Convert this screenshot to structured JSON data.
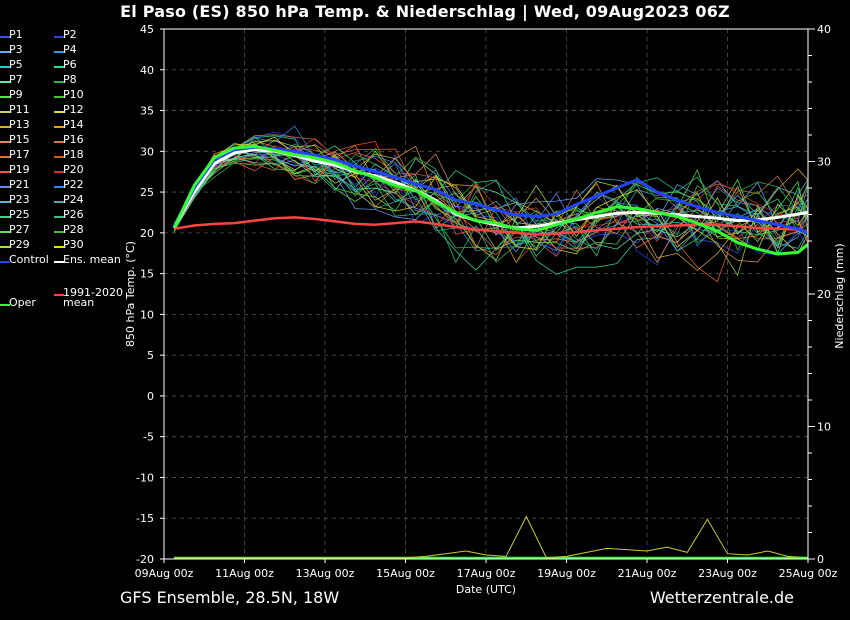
{
  "title": "El Paso  (ES)  850 hPa Temp. & Niederschlag | Wed, 09Aug2023 06Z",
  "footer": {
    "left": "GFS Ensemble, 28.5N, 18W",
    "right": "Wetterzentrale.de"
  },
  "legend": [
    {
      "label": "P1",
      "color": "#3355ff"
    },
    {
      "label": "P2",
      "color": "#2244ee"
    },
    {
      "label": "P3",
      "color": "#66aaff"
    },
    {
      "label": "P4",
      "color": "#3399dd"
    },
    {
      "label": "P5",
      "color": "#22cccc"
    },
    {
      "label": "P6",
      "color": "#33dd99"
    },
    {
      "label": "P7",
      "color": "#55eeaa"
    },
    {
      "label": "P8",
      "color": "#22bb55"
    },
    {
      "label": "P9",
      "color": "#44ee44"
    },
    {
      "label": "P10",
      "color": "#33cc33"
    },
    {
      "label": "P11",
      "color": "#cccc66"
    },
    {
      "label": "P12",
      "color": "#dddd55"
    },
    {
      "label": "P13",
      "color": "#ddaa33"
    },
    {
      "label": "P14",
      "color": "#ee9922"
    },
    {
      "label": "P15",
      "color": "#dd8866"
    },
    {
      "label": "P16",
      "color": "#cc7744"
    },
    {
      "label": "P17",
      "color": "#ee6633"
    },
    {
      "label": "P18",
      "color": "#dd5522"
    },
    {
      "label": "P19",
      "color": "#ee5555"
    },
    {
      "label": "P20",
      "color": "#cc3333"
    },
    {
      "label": "P21",
      "color": "#6688ff"
    },
    {
      "label": "P22",
      "color": "#3388ee"
    },
    {
      "label": "P23",
      "color": "#55bbcc"
    },
    {
      "label": "P24",
      "color": "#44aaaa"
    },
    {
      "label": "P25",
      "color": "#33dd88"
    },
    {
      "label": "P26",
      "color": "#22cc88"
    },
    {
      "label": "P27",
      "color": "#66dd55"
    },
    {
      "label": "P28",
      "color": "#44bb33"
    },
    {
      "label": "P29",
      "color": "#aadd44"
    },
    {
      "label": "P30",
      "color": "#dddd22"
    },
    {
      "label": "Control",
      "color": "#2244ff"
    },
    {
      "label": "Ens. mean",
      "color": "#ffffff"
    },
    {
      "label": "1991-2020\nmean",
      "color": "#ff4444"
    },
    {
      "label": "Oper",
      "color": "#33ff33"
    }
  ],
  "chart_data": {
    "type": "line",
    "xlabel": "Date (UTC)",
    "ylabel": "850 hPa Temp. (°C)",
    "ylabel_right": "Niederschlag (mm)",
    "ylim": [
      -20,
      45
    ],
    "ylim_right": [
      0,
      40
    ],
    "yticks": [
      -20,
      -15,
      -10,
      -5,
      0,
      5,
      10,
      15,
      20,
      25,
      30,
      35,
      40,
      45
    ],
    "yticks_right": [
      0,
      10,
      20,
      30,
      40
    ],
    "x_tick_labels": [
      "09Aug 00z",
      "11Aug 00z",
      "13Aug 00z",
      "15Aug 00z",
      "17Aug 00z",
      "19Aug 00z",
      "21Aug 00z",
      "23Aug 00z",
      "25Aug 00z"
    ],
    "x_range_days": [
      0,
      16
    ],
    "grid": true,
    "series": [
      {
        "name": "Ens. mean",
        "color": "#ffffff",
        "width": 3,
        "x": [
          0.25,
          0.75,
          1.25,
          1.75,
          2.25,
          2.75,
          3.25,
          3.75,
          4.25,
          4.75,
          5.25,
          5.75,
          6.25,
          6.75,
          7.25,
          7.75,
          8.25,
          8.75,
          9.25,
          9.75,
          10.25,
          10.75,
          11.25,
          11.75,
          12.25,
          12.75,
          13.25,
          13.75,
          14.25,
          14.75,
          15.25,
          15.75,
          16.0
        ],
        "y": [
          20.7,
          25.0,
          28.5,
          29.8,
          30.2,
          30.0,
          29.5,
          28.8,
          28.3,
          27.5,
          27.0,
          26.2,
          25.2,
          24.0,
          22.3,
          21.5,
          21.0,
          20.6,
          20.8,
          21.2,
          21.6,
          22.0,
          22.4,
          22.5,
          22.4,
          22.2,
          22.0,
          21.8,
          21.5,
          21.6,
          21.9,
          22.3,
          22.5
        ]
      },
      {
        "name": "1991-2020 mean",
        "color": "#ff4444",
        "width": 2.5,
        "x": [
          0.25,
          0.75,
          1.25,
          1.75,
          2.25,
          2.75,
          3.25,
          3.75,
          4.25,
          4.75,
          5.25,
          5.75,
          6.25,
          6.75,
          7.25,
          7.75,
          8.25,
          8.75,
          9.25,
          9.75,
          10.25,
          10.75,
          11.25,
          11.75,
          12.25,
          12.75,
          13.25,
          13.75,
          14.25,
          14.75,
          15.25,
          15.75,
          16.0
        ],
        "y": [
          20.5,
          20.9,
          21.1,
          21.2,
          21.5,
          21.8,
          21.9,
          21.7,
          21.4,
          21.1,
          21.0,
          21.2,
          21.4,
          21.1,
          20.7,
          20.4,
          20.2,
          20.0,
          19.8,
          19.9,
          20.1,
          20.3,
          20.5,
          20.7,
          20.8,
          20.9,
          21.0,
          21.0,
          20.8,
          20.6,
          20.5,
          20.4,
          20.2
        ]
      },
      {
        "name": "Control",
        "color": "#2244ff",
        "width": 3,
        "x": [
          0.25,
          0.75,
          1.25,
          1.75,
          2.25,
          2.75,
          3.25,
          3.75,
          4.25,
          4.75,
          5.25,
          5.75,
          6.25,
          6.75,
          7.25,
          7.75,
          8.25,
          8.75,
          9.25,
          9.75,
          10.25,
          10.75,
          11.25,
          11.75,
          12.25,
          12.75,
          13.25,
          13.75,
          14.25,
          14.75,
          15.25,
          15.75,
          16.0
        ],
        "y": [
          20.8,
          25.5,
          29.0,
          30.2,
          30.5,
          30.3,
          30.0,
          29.5,
          29.0,
          28.2,
          27.5,
          26.8,
          26.0,
          25.3,
          24.0,
          23.5,
          22.8,
          22.2,
          22.0,
          22.3,
          23.5,
          24.5,
          25.5,
          26.5,
          25.0,
          24.0,
          23.2,
          22.5,
          22.0,
          21.5,
          21.0,
          20.5,
          20.0
        ]
      },
      {
        "name": "Oper",
        "color": "#33ff33",
        "width": 3,
        "x": [
          0.25,
          0.75,
          1.25,
          1.75,
          2.25,
          2.75,
          3.25,
          3.75,
          4.25,
          4.75,
          5.25,
          5.75,
          6.25,
          6.75,
          7.25,
          7.75,
          8.25,
          8.75,
          9.25,
          9.75,
          10.25,
          10.75,
          11.25,
          11.75,
          12.25,
          12.75,
          13.25,
          13.75,
          14.25,
          14.75,
          15.25,
          15.75,
          16.0
        ],
        "y": [
          20.6,
          25.8,
          29.2,
          30.4,
          30.6,
          30.1,
          29.6,
          29.2,
          28.6,
          27.6,
          26.8,
          25.8,
          25.2,
          23.8,
          22.5,
          21.5,
          21.2,
          20.5,
          20.3,
          21.0,
          21.7,
          22.5,
          23.2,
          23.0,
          22.5,
          22.0,
          21.2,
          20.2,
          18.8,
          18.0,
          17.4,
          17.6,
          18.6
        ]
      }
    ],
    "precipitation": {
      "color": "#cccc33",
      "x": [
        0.25,
        6.0,
        6.5,
        7.0,
        7.5,
        8.0,
        8.5,
        9.0,
        9.5,
        10.0,
        11.0,
        12.0,
        12.5,
        13.0,
        13.5,
        14.0,
        14.5,
        15.0,
        15.5,
        16.0
      ],
      "y": [
        0.1,
        0.1,
        0.2,
        0.4,
        0.6,
        0.3,
        0.2,
        3.2,
        0.1,
        0.2,
        0.8,
        0.6,
        0.9,
        0.5,
        3.0,
        0.4,
        0.3,
        0.6,
        0.2,
        0.1
      ]
    }
  }
}
